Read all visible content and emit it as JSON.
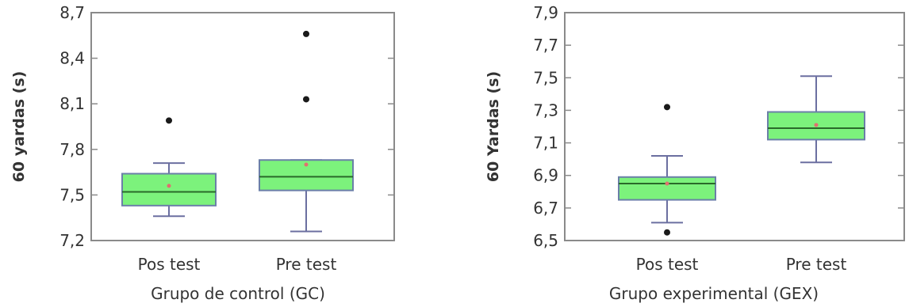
{
  "colors": {
    "box_fill": "#7cf27c",
    "box_stroke": "#6b7fa8",
    "whisker": "#6b6fa0",
    "median": "#2a6a2a",
    "mean_dot": "#e07070",
    "outlier": "#1a1a1a",
    "frame": "#8a8a8a"
  },
  "chart_data": [
    {
      "type": "box",
      "xlabel": "Grupo de control (GC)",
      "ylabel": "60 yardas (s)",
      "ylim": [
        7.2,
        8.7
      ],
      "yticks": [
        "7,2",
        "7,5",
        "7,8",
        "8,1",
        "8,4",
        "8,7"
      ],
      "ytick_values": [
        7.2,
        7.5,
        7.8,
        8.1,
        8.4,
        8.7
      ],
      "grid": false,
      "categories": [
        "Pos test",
        "Pre test"
      ],
      "boxes": [
        {
          "whisker_low": 7.36,
          "q1": 7.43,
          "median": 7.52,
          "q3": 7.64,
          "whisker_high": 7.71,
          "mean": 7.56,
          "outliers": [
            7.99
          ]
        },
        {
          "whisker_low": 7.26,
          "q1": 7.53,
          "median": 7.62,
          "q3": 7.73,
          "whisker_high": 7.73,
          "mean": 7.7,
          "outliers": [
            8.13,
            8.56
          ]
        }
      ]
    },
    {
      "type": "box",
      "xlabel": "Grupo experimental (GEX)",
      "ylabel": "60 Yardas (s)",
      "ylim": [
        6.5,
        7.9
      ],
      "yticks": [
        "6,5",
        "6,7",
        "6,9",
        "7,1",
        "7,3",
        "7,5",
        "7,7",
        "7,9"
      ],
      "ytick_values": [
        6.5,
        6.7,
        6.9,
        7.1,
        7.3,
        7.5,
        7.7,
        7.9
      ],
      "grid": false,
      "categories": [
        "Pos test",
        "Pre test"
      ],
      "boxes": [
        {
          "whisker_low": 6.61,
          "q1": 6.75,
          "median": 6.85,
          "q3": 6.89,
          "whisker_high": 7.02,
          "mean": 6.85,
          "outliers": [
            7.32,
            6.55
          ]
        },
        {
          "whisker_low": 6.98,
          "q1": 7.12,
          "median": 7.19,
          "q3": 7.29,
          "whisker_high": 7.51,
          "mean": 7.21,
          "outliers": []
        }
      ]
    }
  ]
}
